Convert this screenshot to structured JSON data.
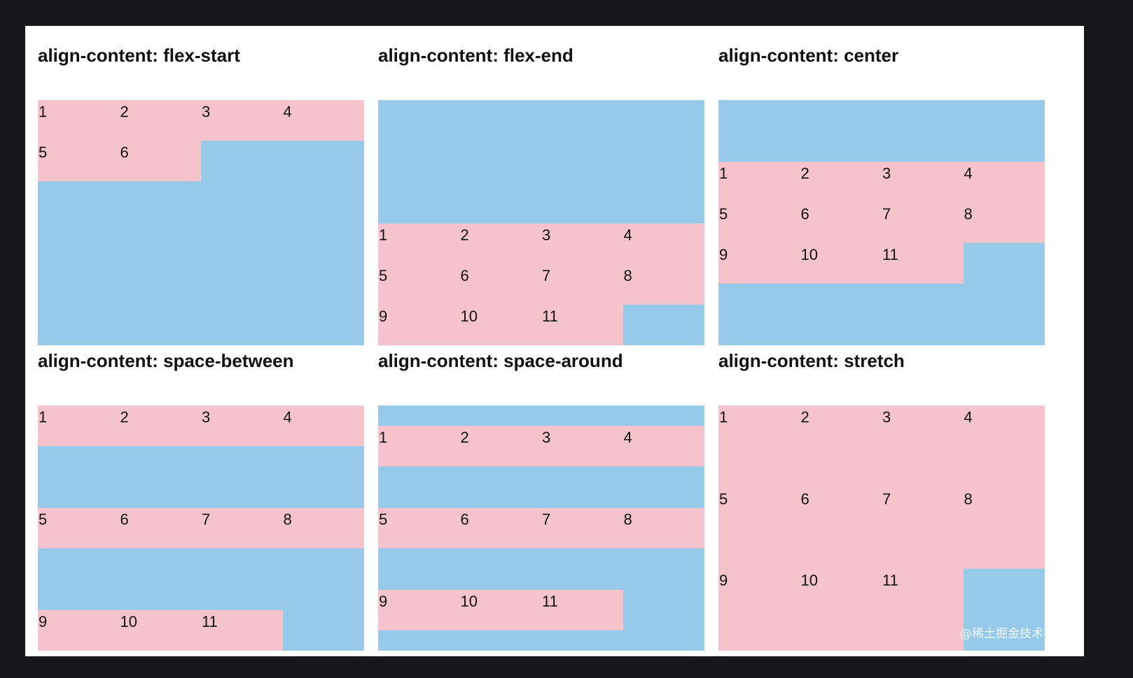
{
  "colors": {
    "page_background": "#18181a",
    "card_background": "#ffffff",
    "container_color": "#97cae9",
    "item_color": "#f4c3cc",
    "text_color": "#111111"
  },
  "panels": [
    {
      "title": "align-content: flex-start",
      "align": "flex-start",
      "items": [
        "1",
        "2",
        "3",
        "4",
        "5",
        "6"
      ]
    },
    {
      "title": "align-content: flex-end",
      "align": "flex-end",
      "items": [
        "1",
        "2",
        "3",
        "4",
        "5",
        "6",
        "7",
        "8",
        "9",
        "10",
        "11"
      ]
    },
    {
      "title": "align-content: center",
      "align": "center",
      "items": [
        "1",
        "2",
        "3",
        "4",
        "5",
        "6",
        "7",
        "8",
        "9",
        "10",
        "11"
      ]
    },
    {
      "title": "align-content: space-between",
      "align": "space-between",
      "items": [
        "1",
        "2",
        "3",
        "4",
        "5",
        "6",
        "7",
        "8",
        "9",
        "10",
        "11"
      ]
    },
    {
      "title": "align-content: space-around",
      "align": "space-around",
      "items": [
        "1",
        "2",
        "3",
        "4",
        "5",
        "6",
        "7",
        "8",
        "9",
        "10",
        "11"
      ]
    },
    {
      "title": "align-content: stretch",
      "align": "stretch",
      "items": [
        "1",
        "2",
        "3",
        "4",
        "5",
        "6",
        "7",
        "8",
        "9",
        "10",
        "11"
      ]
    }
  ],
  "watermark": "@稀土掘金技术社区"
}
